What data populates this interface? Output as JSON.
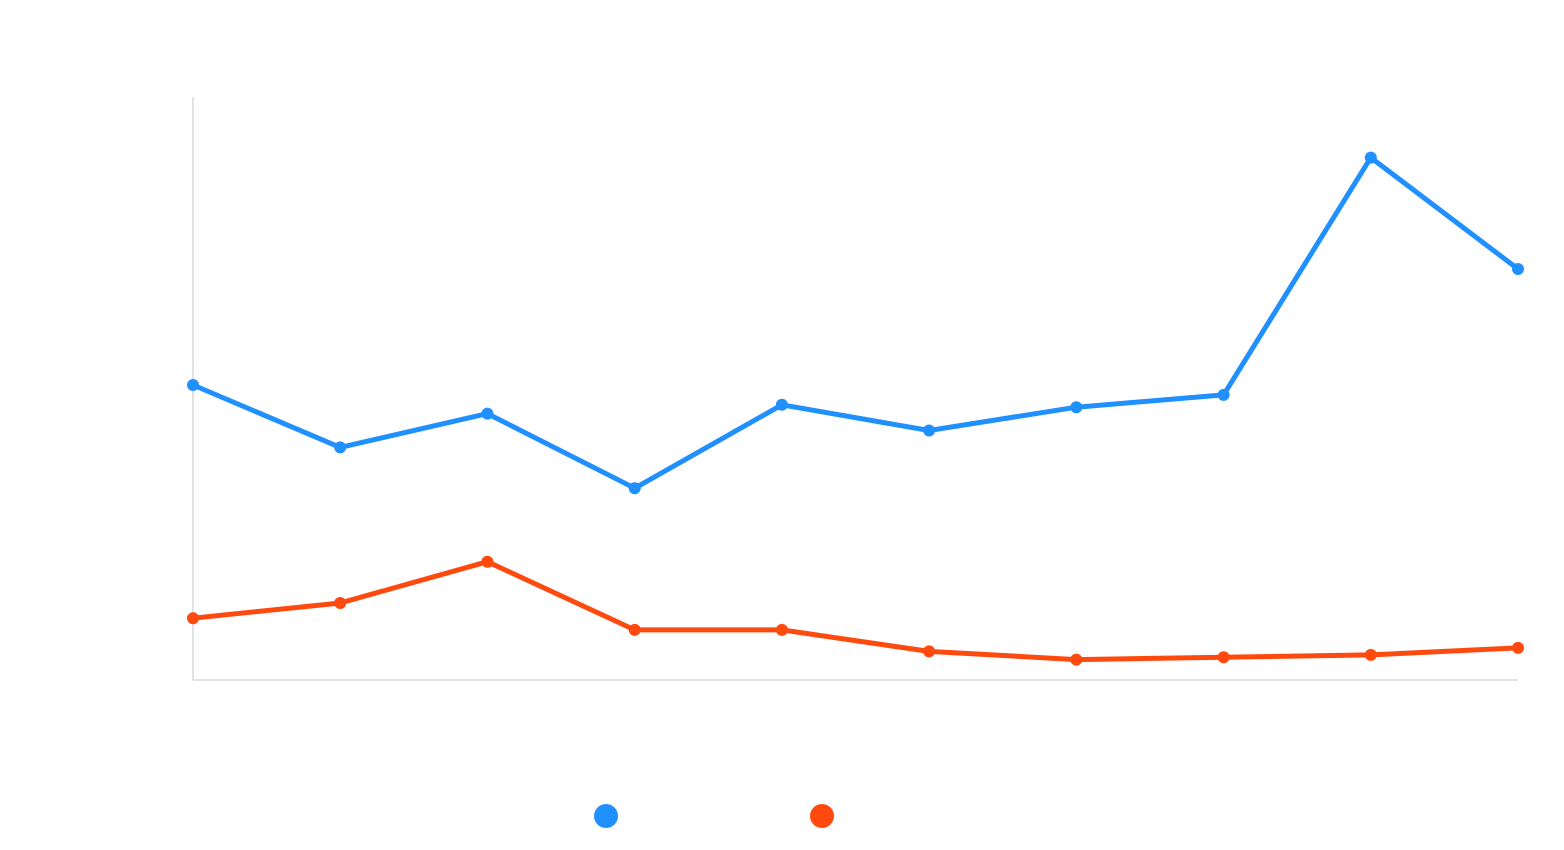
{
  "chart_data": {
    "type": "line",
    "title": "",
    "xlabel": "",
    "ylabel": "",
    "x": [
      1,
      2,
      3,
      4,
      5,
      6,
      7,
      8,
      9,
      10
    ],
    "xlim": [
      1,
      10
    ],
    "ylim": [
      0,
      100
    ],
    "grid": false,
    "legend": "bottom-center",
    "series": [
      {
        "color": "#2090ff",
        "values": [
          50.6,
          39.9,
          45.7,
          32.9,
          47.2,
          42.8,
          46.8,
          48.9,
          89.6,
          70.5
        ]
      },
      {
        "color": "#ff4a0f",
        "values": [
          10.6,
          13.2,
          20.3,
          8.6,
          8.6,
          4.9,
          3.5,
          3.9,
          4.3,
          5.5
        ]
      }
    ]
  }
}
